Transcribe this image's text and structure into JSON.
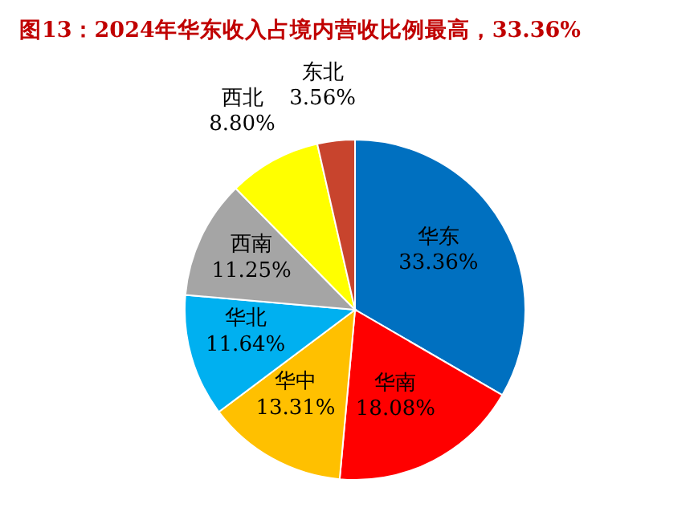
{
  "chart_data": {
    "type": "pie",
    "title": "图13：2024年华东收入占境内营收比例最高，33.36%",
    "categories": [
      "华东",
      "华南",
      "华中",
      "华北",
      "西南",
      "西北",
      "东北"
    ],
    "values": [
      33.36,
      18.08,
      13.31,
      11.64,
      11.25,
      8.8,
      3.56
    ],
    "value_labels": [
      "33.36%",
      "18.08%",
      "13.31%",
      "11.64%",
      "11.25%",
      "8.80%",
      "3.56%"
    ],
    "colors": [
      "#0070c0",
      "#ff0000",
      "#ffc000",
      "#00b0f0",
      "#a5a5a5",
      "#ffff00",
      "#c8442d"
    ],
    "legend": false
  }
}
